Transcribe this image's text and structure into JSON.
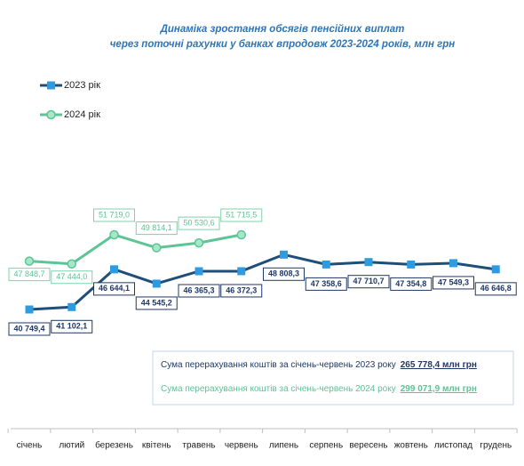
{
  "chart_data": {
    "type": "line",
    "title": [
      "Динаміка зростання обсягів пенсійних виплат",
      "через поточні рахунки у банках впродовж 2023-2024 років, млн грн"
    ],
    "categories": [
      "січень",
      "лютий",
      "березень",
      "квітень",
      "травень",
      "червень",
      "липень",
      "серпень",
      "вересень",
      "жовтень",
      "листопад",
      "грудень"
    ],
    "series": [
      {
        "name": "2023 рік",
        "color": "#1f4e79",
        "marker_color": "#2e9be0",
        "values": [
          40749.4,
          41102.1,
          46644.1,
          44545.2,
          46365.3,
          46372.3,
          48808.3,
          47358.6,
          47710.7,
          47354.8,
          47549.3,
          46646.8
        ],
        "value_labels": [
          "40 749,4",
          "41 102,1",
          "46 644,1",
          "44 545,2",
          "46 365,3",
          "46 372,3",
          "48 808,3",
          "47 358,6",
          "47 710,7",
          "47 354,8",
          "47 549,3",
          "46 646,8"
        ]
      },
      {
        "name": "2024 рік",
        "color": "#5cc495",
        "marker_color": "#a8e6c8",
        "values": [
          47848.7,
          47444.0,
          51719.0,
          49814.1,
          50530.6,
          51715.5,
          null,
          null,
          null,
          null,
          null,
          null
        ],
        "value_labels": [
          "47 848,7",
          "47 444,0",
          "51 719,0",
          "49 814,1",
          "50 530,6",
          "51 715,5",
          null,
          null,
          null,
          null,
          null,
          null
        ]
      }
    ],
    "annotations": [
      {
        "text": "Сума перерахування коштів  за січень-червень 2023 року",
        "value": "265 778,4 млн грн",
        "color": "#1f3864"
      },
      {
        "text": "Сума перерахування коштів  за січень-червень 2024 року",
        "value": "299 071,9 млн грн",
        "color": "#5cc495"
      }
    ]
  }
}
